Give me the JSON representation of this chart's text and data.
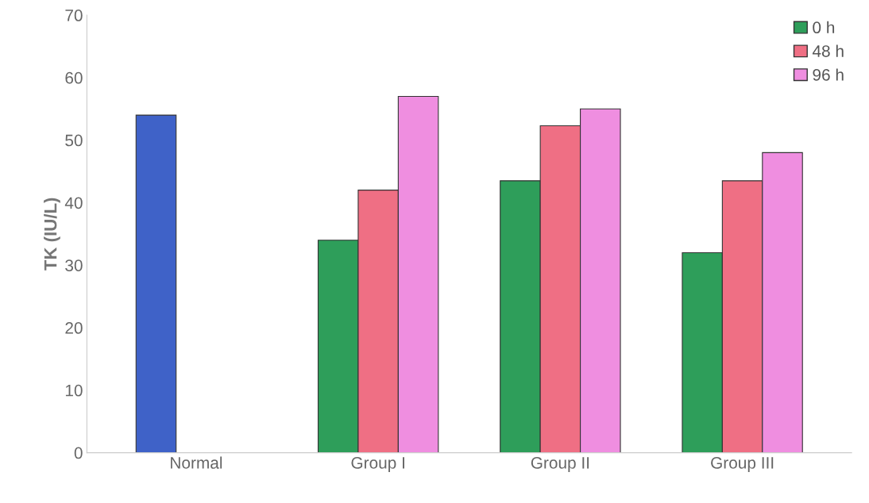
{
  "chart_data": {
    "type": "bar",
    "ylabel": "TK (IU/L)",
    "categories": [
      "Normal",
      "Group I",
      "Group II",
      "Group III"
    ],
    "series": [
      {
        "name": "0 h",
        "color": "#2e9e5a",
        "colors": [
          "#3f62c8",
          "#2e9e5a",
          "#2e9e5a",
          "#2e9e5a"
        ],
        "values": [
          54,
          34,
          43.5,
          32
        ]
      },
      {
        "name": "48 h",
        "color": "#ef6f84",
        "values": [
          null,
          42,
          52.3,
          43.5
        ]
      },
      {
        "name": "96 h",
        "color": "#ef8ee0",
        "values": [
          null,
          57,
          55,
          48
        ]
      }
    ],
    "ylim": [
      0,
      70
    ],
    "yticks": [
      0,
      10,
      20,
      30,
      40,
      50,
      60,
      70
    ],
    "grid": false,
    "legend": "top right"
  }
}
